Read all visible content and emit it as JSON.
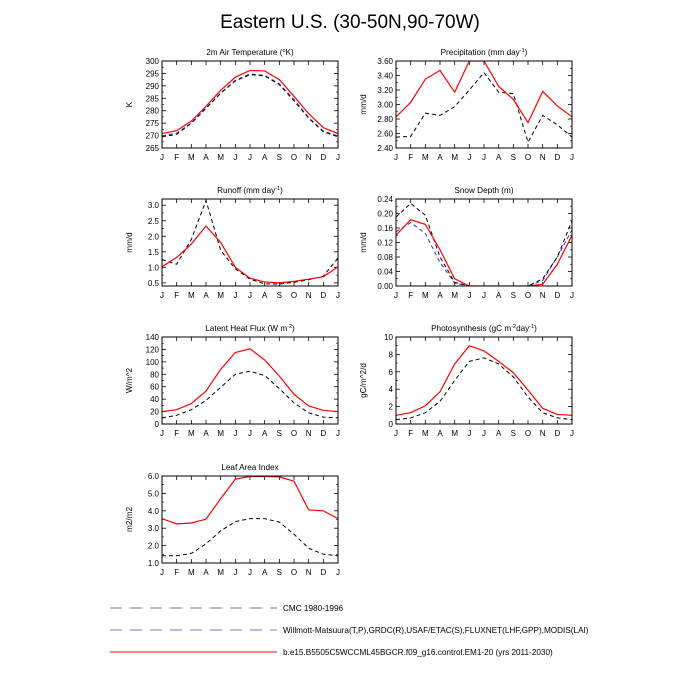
{
  "figure": {
    "title": "Eastern U.S. (30-50N,90-70W)",
    "colors": {
      "cmc": "#000000",
      "obs": "#3333cc",
      "model": "#ff0000",
      "frame": "#000000"
    }
  },
  "legend": {
    "entries": [
      {
        "label": "CMC 1980-1996",
        "style": "dash-long",
        "color": "#777777"
      },
      {
        "label": "Willmott-Matsuura(T,P),GRDC(R),USAF/ETAC(S),FLUXNET(LHF,GPP),MODIS(LAI)",
        "style": "dash-long",
        "color": "#7777cc"
      },
      {
        "label": "b.e15.B5505C5WCCML45BGCR.f09_g16.control.EM1-20 (yrs 2011-2030)",
        "style": "solid",
        "color": "#ff0000"
      }
    ]
  },
  "chart_data": [
    {
      "type": "line",
      "title_parts": [
        "2m Air Temperature (",
        "o",
        "K)"
      ],
      "ylabel": "K",
      "categories": [
        "J",
        "F",
        "M",
        "A",
        "M",
        "J",
        "J",
        "A",
        "S",
        "O",
        "N",
        "D",
        "J"
      ],
      "ylim": [
        265,
        300
      ],
      "yticks": [
        265,
        270,
        275,
        280,
        285,
        290,
        295,
        300
      ],
      "ytick_labels": [
        "265",
        "270",
        "275",
        "280",
        "285",
        "290",
        "295",
        "300"
      ],
      "series": [
        {
          "name": "model",
          "style": "solid",
          "values": [
            270.8,
            272.0,
            275.8,
            281.8,
            288.2,
            293.5,
            296.2,
            296.0,
            292.5,
            285.8,
            278.8,
            273.2,
            270.8
          ]
        },
        {
          "name": "obs",
          "style": "dash-blue",
          "values": [
            269.8,
            271.0,
            275.0,
            281.0,
            287.2,
            292.2,
            294.8,
            294.2,
            290.8,
            284.5,
            277.2,
            271.8,
            269.8
          ]
        },
        {
          "name": "cmc",
          "style": "dash",
          "values": [
            269.5,
            270.5,
            275.0,
            281.0,
            287.0,
            292.0,
            294.5,
            294.0,
            290.5,
            284.0,
            277.0,
            271.5,
            269.5
          ]
        }
      ]
    },
    {
      "type": "line",
      "title_parts": [
        "Precipitation (mm day",
        "-1",
        ")"
      ],
      "ylabel": "mm/d",
      "categories": [
        "J",
        "F",
        "M",
        "A",
        "M",
        "J",
        "J",
        "A",
        "S",
        "O",
        "N",
        "D",
        "J"
      ],
      "ylim": [
        2.4,
        3.6
      ],
      "yticks": [
        2.4,
        2.6,
        2.8,
        3.0,
        3.2,
        3.4,
        3.6
      ],
      "ytick_labels": [
        "2.40",
        "2.60",
        "2.80",
        "3.00",
        "3.20",
        "3.40",
        "3.60"
      ],
      "series": [
        {
          "name": "model",
          "style": "solid",
          "values": [
            2.83,
            3.03,
            3.35,
            3.47,
            3.17,
            3.6,
            3.6,
            3.25,
            3.07,
            2.75,
            3.18,
            2.98,
            2.83
          ]
        },
        {
          "name": "cmc",
          "style": "dash",
          "values": [
            2.55,
            2.56,
            2.88,
            2.85,
            2.97,
            3.2,
            3.44,
            3.17,
            3.15,
            2.48,
            2.85,
            2.72,
            2.55
          ]
        }
      ]
    },
    {
      "type": "line",
      "title_parts": [
        "Runoff (mm day",
        "-1",
        ")"
      ],
      "ylabel": "mm/d",
      "categories": [
        "J",
        "F",
        "M",
        "A",
        "M",
        "J",
        "J",
        "A",
        "S",
        "O",
        "N",
        "D",
        "J"
      ],
      "ylim": [
        0.4,
        3.2
      ],
      "yticks": [
        0.5,
        1.0,
        1.5,
        2.0,
        2.5,
        3.0
      ],
      "ytick_labels": [
        "0.5",
        "1.0",
        "1.5",
        "2.0",
        "2.5",
        "3.0"
      ],
      "series": [
        {
          "name": "model",
          "style": "solid",
          "values": [
            1.02,
            1.32,
            1.75,
            2.33,
            1.8,
            1.0,
            0.65,
            0.53,
            0.5,
            0.55,
            0.62,
            0.7,
            1.02
          ]
        },
        {
          "name": "cmc",
          "style": "dash",
          "values": [
            1.25,
            1.1,
            1.9,
            3.15,
            1.55,
            0.95,
            0.62,
            0.47,
            0.46,
            0.52,
            0.6,
            0.72,
            1.3
          ]
        }
      ]
    },
    {
      "type": "line",
      "title_parts": [
        "Snow Depth (m)"
      ],
      "ylabel": "mm/d",
      "categories": [
        "J",
        "F",
        "M",
        "A",
        "M",
        "J",
        "J",
        "A",
        "S",
        "O",
        "N",
        "D",
        "J"
      ],
      "ylim": [
        0,
        0.24
      ],
      "yticks": [
        0,
        0.04,
        0.08,
        0.12,
        0.16,
        0.2,
        0.24
      ],
      "ytick_labels": [
        "0.00",
        "0.04",
        "0.08",
        "0.12",
        "0.16",
        "0.20",
        "0.24"
      ],
      "series": [
        {
          "name": "model",
          "style": "solid",
          "values": [
            0.14,
            0.183,
            0.17,
            0.1,
            0.02,
            0.0,
            0.0,
            0.0,
            0.0,
            0.0,
            0.005,
            0.06,
            0.14
          ]
        },
        {
          "name": "obs",
          "style": "dash-blue",
          "values": [
            0.15,
            0.175,
            0.145,
            0.065,
            0.008,
            0.0,
            0.0,
            0.0,
            0.0,
            0.0,
            0.015,
            0.08,
            0.155
          ]
        },
        {
          "name": "cmc",
          "style": "dash",
          "values": [
            0.19,
            0.228,
            0.195,
            0.08,
            0.01,
            0.0,
            0.0,
            0.0,
            0.0,
            0.0,
            0.02,
            0.08,
            0.18
          ]
        }
      ]
    },
    {
      "type": "line",
      "title_parts": [
        "Latent Heat Flux (W m",
        "-2",
        ")"
      ],
      "ylabel": "W/m^2",
      "categories": [
        "J",
        "F",
        "M",
        "A",
        "M",
        "J",
        "J",
        "A",
        "S",
        "O",
        "N",
        "D",
        "J"
      ],
      "ylim": [
        0,
        140
      ],
      "yticks": [
        0,
        20,
        40,
        60,
        80,
        100,
        120,
        140
      ],
      "ytick_labels": [
        "0",
        "20",
        "40",
        "60",
        "80",
        "100",
        "120",
        "140"
      ],
      "series": [
        {
          "name": "model",
          "style": "solid",
          "values": [
            20,
            23,
            33,
            53,
            88,
            115,
            121,
            103,
            77,
            48,
            29,
            22,
            20
          ]
        },
        {
          "name": "cmc",
          "style": "dash",
          "values": [
            10,
            14,
            23,
            38,
            59,
            80,
            85,
            78,
            57,
            34,
            18,
            11,
            10
          ]
        }
      ]
    },
    {
      "type": "line",
      "title_parts": [
        "Photosynthesis (gC m",
        "-2",
        "day",
        "-1",
        ")"
      ],
      "ylabel": "gC/m^2/d",
      "categories": [
        "J",
        "F",
        "M",
        "A",
        "M",
        "J",
        "J",
        "A",
        "S",
        "O",
        "N",
        "D",
        "J"
      ],
      "ylim": [
        0,
        10
      ],
      "yticks": [
        0,
        2,
        4,
        6,
        8,
        10
      ],
      "ytick_labels": [
        "0",
        "2",
        "4",
        "6",
        "8",
        "10"
      ],
      "series": [
        {
          "name": "model",
          "style": "solid",
          "values": [
            1.0,
            1.3,
            2.1,
            3.7,
            6.9,
            9.0,
            8.4,
            7.2,
            5.9,
            3.9,
            1.8,
            1.1,
            1.0
          ]
        },
        {
          "name": "cmc",
          "style": "dash",
          "values": [
            0.5,
            0.7,
            1.3,
            2.6,
            5.0,
            7.2,
            7.6,
            6.9,
            5.4,
            3.1,
            1.3,
            0.7,
            0.5
          ]
        }
      ]
    },
    {
      "type": "line",
      "title_parts": [
        "Leaf Area Index"
      ],
      "ylabel": "m2/m2",
      "categories": [
        "J",
        "F",
        "M",
        "A",
        "M",
        "J",
        "J",
        "A",
        "S",
        "O",
        "N",
        "D",
        "J"
      ],
      "ylim": [
        1,
        6
      ],
      "yticks": [
        1,
        2,
        3,
        4,
        5,
        6
      ],
      "ytick_labels": [
        "1.0",
        "2.0",
        "3.0",
        "4.0",
        "5.0",
        "6.0"
      ],
      "series": [
        {
          "name": "model",
          "style": "solid",
          "values": [
            3.55,
            3.25,
            3.3,
            3.52,
            4.7,
            5.82,
            5.98,
            5.98,
            5.95,
            5.7,
            4.05,
            4.0,
            3.55
          ]
        },
        {
          "name": "cmc",
          "style": "dash",
          "values": [
            1.42,
            1.42,
            1.55,
            2.1,
            2.85,
            3.38,
            3.55,
            3.55,
            3.35,
            2.65,
            1.85,
            1.5,
            1.42
          ]
        }
      ]
    }
  ]
}
